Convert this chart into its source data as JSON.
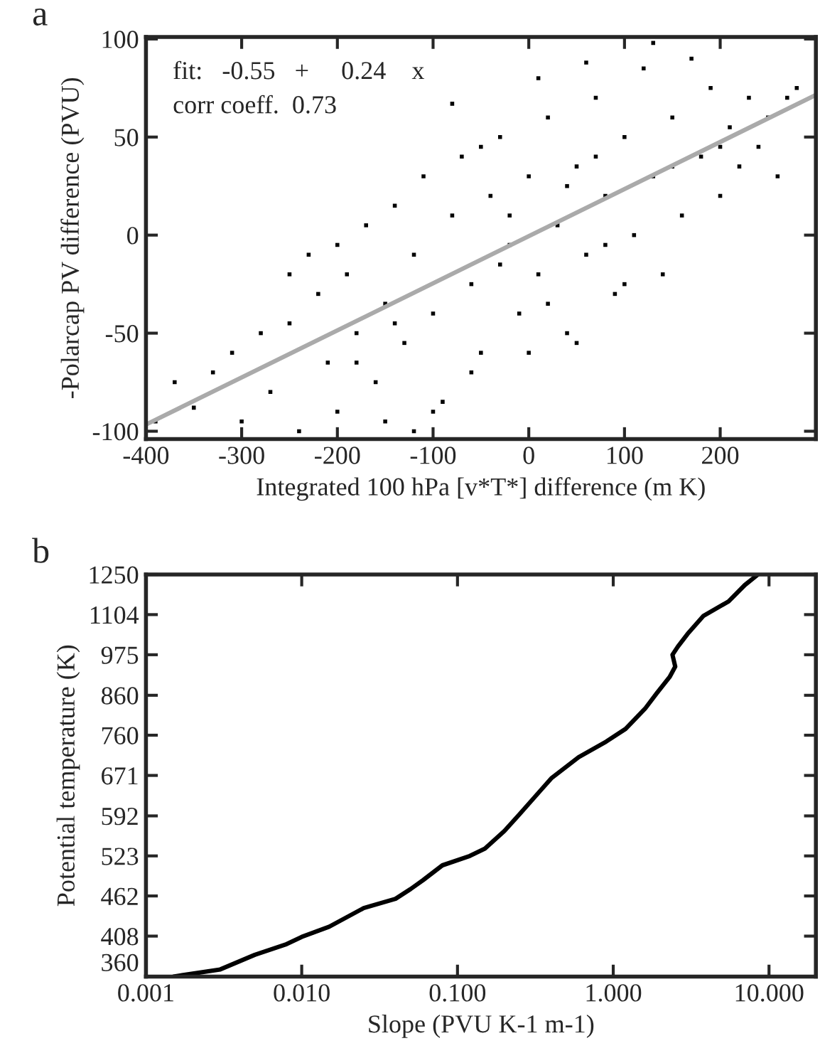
{
  "chart_data": [
    {
      "type": "scatter",
      "title": "a",
      "xlabel": "Integrated 100 hPa [v*T*] difference (m K)",
      "ylabel": "-Polarcap PV difference (PVU)",
      "xlim": [
        -400,
        300
      ],
      "ylim": [
        -104,
        101
      ],
      "xticks": [
        -400,
        -300,
        -200,
        -100,
        0,
        100,
        200
      ],
      "yticks": [
        -100,
        -50,
        0,
        50,
        100
      ],
      "annotations": [
        "fit:   -0.55   +     0.24    x",
        "corr coeff.  0.73"
      ],
      "grid": false,
      "series": [
        {
          "color": "#000000",
          "marker": "square",
          "x": [
            -390,
            -370,
            -350,
            -330,
            -310,
            -300,
            -280,
            -270,
            -250,
            -240,
            -230,
            -220,
            -210,
            -200,
            -190,
            -180,
            -170,
            -160,
            -150,
            -140,
            -130,
            -120,
            -110,
            -100,
            -90,
            -80,
            -70,
            -60,
            -50,
            -40,
            -30,
            -20,
            -10,
            0,
            10,
            20,
            30,
            40,
            50,
            60,
            70,
            80,
            90,
            100,
            110,
            120,
            130,
            140,
            150,
            160,
            170,
            180,
            190,
            200,
            210,
            220,
            230,
            240,
            250,
            260,
            270,
            280,
            -100,
            -80,
            130,
            60,
            -150,
            0,
            -200,
            50,
            100,
            -250,
            -120,
            10,
            -50,
            -60,
            -20,
            20,
            40,
            80,
            -140,
            -180,
            150,
            200,
            -30,
            70
          ],
          "values": [
            -95,
            -75,
            -88,
            -70,
            -60,
            -95,
            -50,
            -80,
            -45,
            -100,
            -10,
            -30,
            -65,
            -90,
            -20,
            -50,
            5,
            -75,
            -35,
            15,
            -55,
            -10,
            30,
            -40,
            -85,
            10,
            40,
            -25,
            -60,
            20,
            50,
            -5,
            -40,
            30,
            -20,
            60,
            5,
            -50,
            35,
            -10,
            70,
            20,
            -30,
            50,
            0,
            85,
            30,
            -20,
            60,
            10,
            90,
            40,
            75,
            20,
            55,
            35,
            70,
            45,
            60,
            30,
            70,
            75,
            -90,
            67,
            98,
            88,
            -95,
            -60,
            -5,
            -55,
            -25,
            -20,
            -100,
            80,
            45,
            -70,
            10,
            -35,
            25,
            -5,
            -45,
            -65,
            35,
            45,
            -15,
            40
          ]
        },
        {
          "type": "line",
          "color": "#aaaaaa",
          "x": [
            -400,
            300
          ],
          "values": [
            -96.6,
            71.5
          ]
        }
      ]
    },
    {
      "type": "line",
      "title": "b",
      "xlabel": "Slope (PVU K-1 m-1)",
      "ylabel": "Potential temperature (K)",
      "log": "xy",
      "xlim": [
        0.001,
        20
      ],
      "ylim": [
        360,
        1250
      ],
      "xticks": [
        {
          "value": 0.001,
          "label": "0.001"
        },
        {
          "value": 0.01,
          "label": "0.010"
        },
        {
          "value": 0.1,
          "label": "0.100"
        },
        {
          "value": 1,
          "label": "1.000"
        },
        {
          "value": 10,
          "label": "10.000"
        }
      ],
      "yticks": [
        360,
        408,
        462,
        523,
        592,
        671,
        760,
        860,
        975,
        1104,
        1250
      ],
      "grid": false,
      "series": [
        {
          "color": "#000000",
          "x": [
            0.0015,
            0.003,
            0.005,
            0.008,
            0.01,
            0.015,
            0.025,
            0.04,
            0.05,
            0.06,
            0.08,
            0.12,
            0.15,
            0.2,
            0.25,
            0.4,
            0.6,
            0.9,
            1.2,
            1.6,
            1.9,
            2.3,
            2.5,
            2.4,
            2.6,
            3.0,
            3.8,
            5.5,
            7.0,
            8.5
          ],
          "values": [
            360,
            368,
            385,
            398,
            407,
            420,
            445,
            458,
            472,
            485,
            508,
            523,
            535,
            565,
            595,
            665,
            710,
            745,
            775,
            825,
            865,
            910,
            940,
            975,
            1000,
            1040,
            1100,
            1150,
            1210,
            1250
          ]
        }
      ]
    }
  ]
}
